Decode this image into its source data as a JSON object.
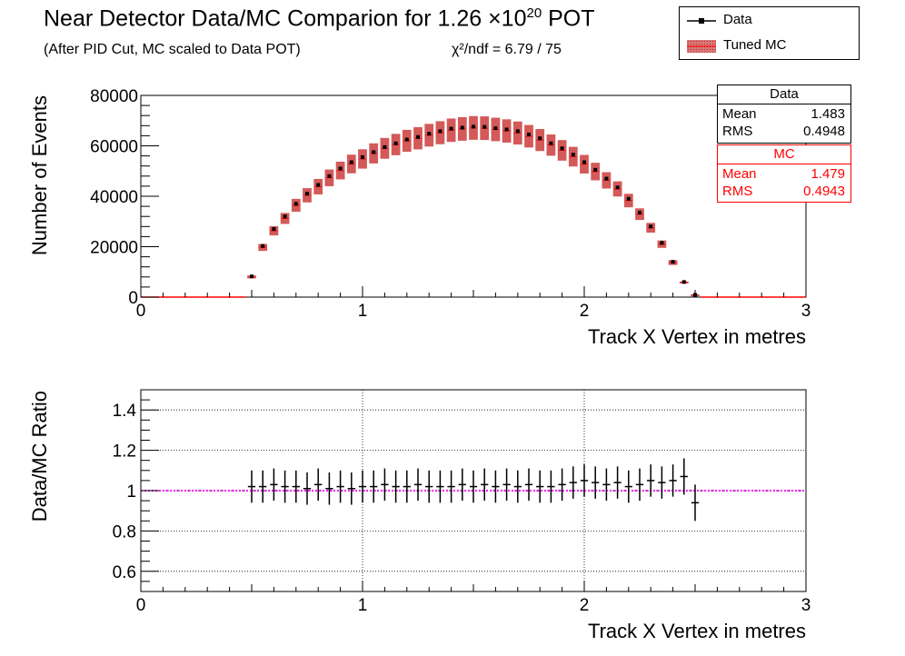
{
  "header": {
    "title": "Near Detector Data/MC Comparion for 1.26 ×10",
    "title_exp": "20",
    "title_tail": " POT",
    "subtitle": "(After PID Cut, MC scaled to Data POT)",
    "chi2": "χ²/ndf = 6.79 / 75"
  },
  "legend": {
    "items": [
      {
        "label": "Data"
      },
      {
        "label": "Tuned MC"
      }
    ]
  },
  "stats": {
    "data": {
      "title": "Data",
      "mean_label": "Mean",
      "mean": "1.483",
      "rms_label": "RMS",
      "rms": "0.4948"
    },
    "mc": {
      "title": "MC",
      "mean_label": "Mean",
      "mean": "1.479",
      "rms_label": "RMS",
      "rms": "0.4943"
    }
  },
  "colors": {
    "data": "#000000",
    "mc_band": "#cd3c3c",
    "mc_line": "#ff0000",
    "ratio_ref": "#ff00ff"
  },
  "chart_data": [
    {
      "type": "line",
      "title": "Near Detector Data/MC Comparion for 1.26 ×10^20 POT",
      "xlabel": "Track X Vertex in metres",
      "ylabel": "Number of Events",
      "xlim": [
        0,
        3
      ],
      "ylim": [
        0,
        80000
      ],
      "x_ticks": [
        "0",
        "1",
        "2",
        "3"
      ],
      "y_ticks": [
        "0",
        "20000",
        "40000",
        "60000",
        "80000"
      ],
      "grid": false,
      "legend_position": "top-right",
      "x": [
        0.5,
        0.55,
        0.6,
        0.65,
        0.7,
        0.75,
        0.8,
        0.85,
        0.9,
        0.95,
        1.0,
        1.05,
        1.1,
        1.15,
        1.2,
        1.25,
        1.3,
        1.35,
        1.4,
        1.45,
        1.5,
        1.55,
        1.6,
        1.65,
        1.7,
        1.75,
        1.8,
        1.85,
        1.9,
        1.95,
        2.0,
        2.05,
        2.1,
        2.15,
        2.2,
        2.25,
        2.3,
        2.35,
        2.4,
        2.45,
        2.5
      ],
      "series": [
        {
          "name": "Data",
          "values": [
            8200,
            20300,
            27000,
            32000,
            37000,
            41000,
            44500,
            48000,
            51000,
            53500,
            55500,
            57500,
            59500,
            61000,
            62500,
            63500,
            64800,
            65800,
            66800,
            67200,
            67600,
            67500,
            67000,
            66500,
            65800,
            64500,
            63000,
            61000,
            59000,
            56500,
            53500,
            50500,
            47000,
            43500,
            39000,
            33500,
            28000,
            21500,
            14000,
            6000,
            900
          ]
        },
        {
          "name": "Tuned MC",
          "values": [
            8000,
            19700,
            26300,
            31200,
            36400,
            40400,
            43800,
            47300,
            50200,
            52800,
            54800,
            57000,
            59000,
            60500,
            62000,
            63000,
            64200,
            65200,
            66200,
            66700,
            67100,
            67000,
            66500,
            65900,
            65100,
            63800,
            62300,
            60300,
            58200,
            55700,
            52700,
            49800,
            46300,
            42900,
            38300,
            32900,
            27500,
            21000,
            13700,
            5800,
            950
          ],
          "band_fraction": 0.07
        }
      ]
    },
    {
      "type": "scatter",
      "xlabel": "Track X Vertex in metres",
      "ylabel": "Data/MC Ratio",
      "xlim": [
        0,
        3
      ],
      "ylim": [
        0.5,
        1.5
      ],
      "x_ticks": [
        "0",
        "1",
        "2",
        "3"
      ],
      "y_ticks": [
        "0.6",
        "0.8",
        "1",
        "1.2",
        "1.4"
      ],
      "grid": true,
      "reference_line": 1.0,
      "x": [
        0.5,
        0.55,
        0.6,
        0.65,
        0.7,
        0.75,
        0.8,
        0.85,
        0.9,
        0.95,
        1.0,
        1.05,
        1.1,
        1.15,
        1.2,
        1.25,
        1.3,
        1.35,
        1.4,
        1.45,
        1.5,
        1.55,
        1.6,
        1.65,
        1.7,
        1.75,
        1.8,
        1.85,
        1.9,
        1.95,
        2.0,
        2.05,
        2.1,
        2.15,
        2.2,
        2.25,
        2.3,
        2.35,
        2.4,
        2.45,
        2.5
      ],
      "series": [
        {
          "name": "Data/MC",
          "values": [
            1.02,
            1.02,
            1.03,
            1.02,
            1.02,
            1.01,
            1.03,
            1.01,
            1.02,
            1.01,
            1.02,
            1.02,
            1.03,
            1.02,
            1.02,
            1.03,
            1.02,
            1.02,
            1.02,
            1.03,
            1.02,
            1.03,
            1.02,
            1.03,
            1.02,
            1.03,
            1.02,
            1.02,
            1.03,
            1.04,
            1.05,
            1.04,
            1.03,
            1.04,
            1.02,
            1.03,
            1.05,
            1.04,
            1.05,
            1.07,
            0.94
          ],
          "errors": [
            0.08,
            0.08,
            0.08,
            0.08,
            0.08,
            0.08,
            0.08,
            0.08,
            0.08,
            0.08,
            0.08,
            0.08,
            0.08,
            0.08,
            0.08,
            0.08,
            0.08,
            0.08,
            0.08,
            0.08,
            0.08,
            0.08,
            0.08,
            0.08,
            0.08,
            0.08,
            0.08,
            0.08,
            0.08,
            0.08,
            0.08,
            0.08,
            0.08,
            0.08,
            0.08,
            0.08,
            0.08,
            0.08,
            0.08,
            0.09,
            0.09
          ]
        }
      ]
    }
  ]
}
